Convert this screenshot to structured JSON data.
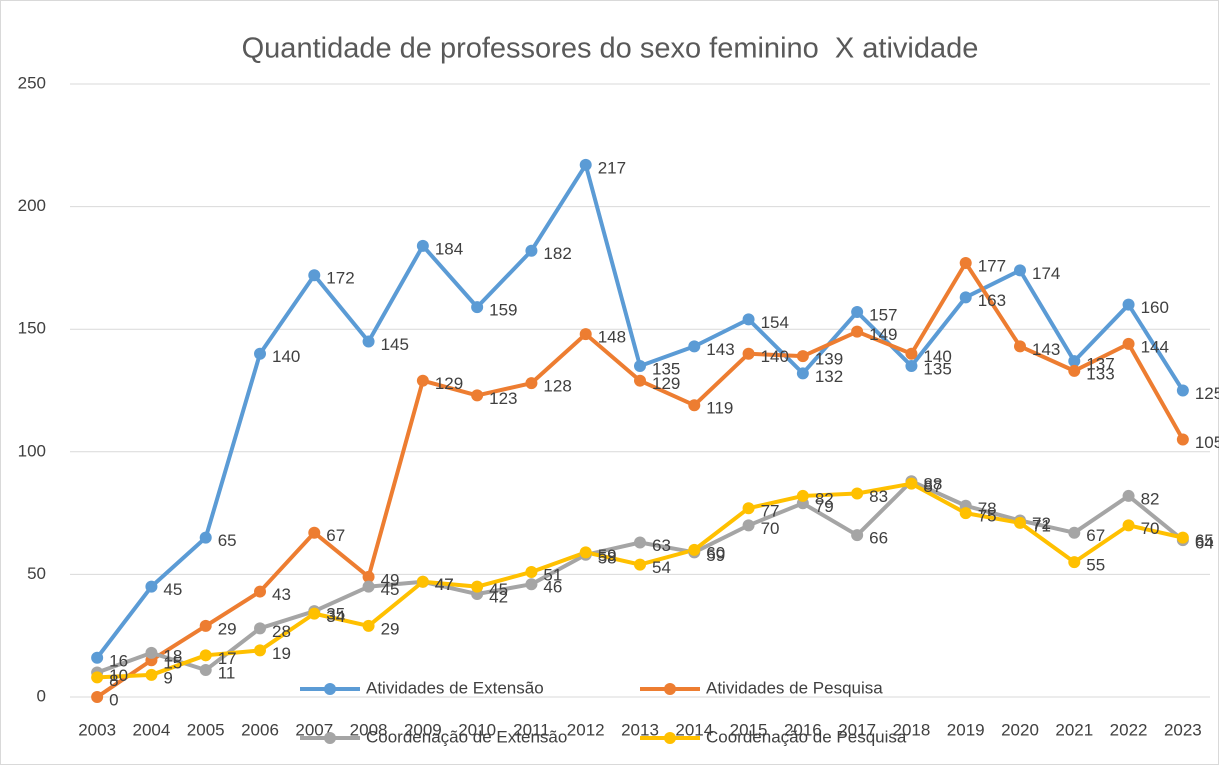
{
  "chart_data": {
    "type": "line",
    "title": "Quantidade de professores do sexo feminino  X atividade",
    "categories": [
      "2003",
      "2004",
      "2005",
      "2006",
      "2007",
      "2008",
      "2009",
      "2010",
      "2011",
      "2012",
      "2013",
      "2014",
      "2015",
      "2016",
      "2017",
      "2018",
      "2019",
      "2020",
      "2021",
      "2022",
      "2023"
    ],
    "series": [
      {
        "name": "Atividades de Extensão",
        "color": "#5b9bd5",
        "values": [
          16,
          45,
          65,
          140,
          172,
          145,
          184,
          159,
          182,
          217,
          135,
          143,
          154,
          132,
          157,
          135,
          163,
          174,
          137,
          160,
          125
        ]
      },
      {
        "name": "Atividades de Pesquisa",
        "color": "#ed7d31",
        "values": [
          0,
          15,
          29,
          43,
          67,
          49,
          129,
          123,
          128,
          148,
          129,
          119,
          140,
          139,
          149,
          140,
          177,
          143,
          133,
          144,
          105
        ]
      },
      {
        "name": "Coordenação de Extensão",
        "color": "#a5a5a5",
        "values": [
          10,
          18,
          11,
          28,
          35,
          45,
          47,
          42,
          46,
          58,
          63,
          59,
          70,
          79,
          66,
          88,
          78,
          72,
          67,
          82,
          64
        ]
      },
      {
        "name": "Coordenação de Pesquisa",
        "color": "#ffc000",
        "values": [
          8,
          9,
          17,
          19,
          34,
          29,
          47,
          45,
          51,
          59,
          54,
          60,
          77,
          82,
          83,
          87,
          75,
          71,
          55,
          70,
          65
        ]
      }
    ],
    "ylim": [
      0,
      250
    ],
    "yticks": [
      0,
      50,
      100,
      150,
      200,
      250
    ],
    "grid": true,
    "legend": "bottom"
  }
}
